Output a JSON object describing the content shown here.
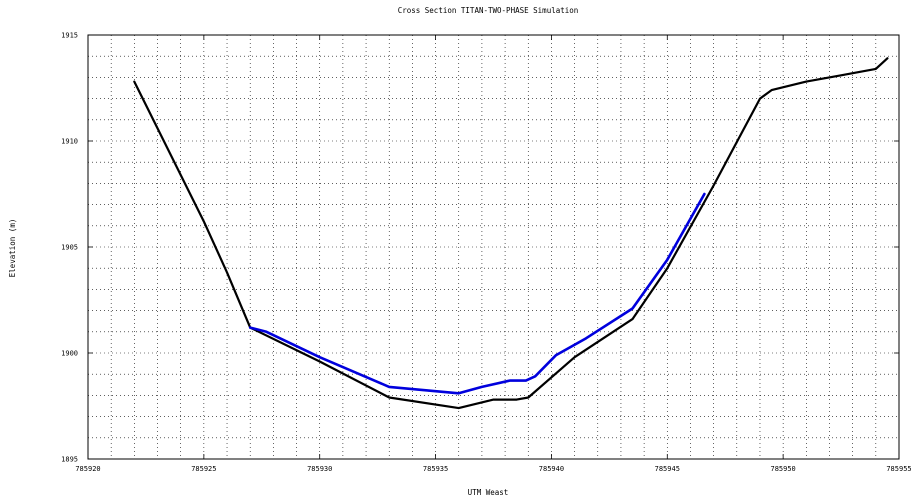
{
  "chart_data": {
    "type": "line",
    "title": "Cross Section TITAN-TWO-PHASE Simulation",
    "xlabel": "UTM Weast",
    "ylabel": "Elevation (m)",
    "xlim": [
      785920,
      785955
    ],
    "ylim": [
      1895,
      1915
    ],
    "xticks": [
      785920,
      785925,
      785930,
      785935,
      785940,
      785945,
      785950,
      785955
    ],
    "yticks": [
      1895,
      1900,
      1905,
      1910,
      1915
    ],
    "grid": true,
    "grid_minor": true,
    "series": [
      {
        "color": "#000000",
        "x": [
          785922.0,
          785925.0,
          785926.0,
          785927.0,
          785930.0,
          785933.0,
          785936.0,
          785937.5,
          785938.5,
          785939.0,
          785941.0,
          785943.5,
          785945.0,
          785947.0,
          785949.0,
          785949.5,
          785951.0,
          785952.5,
          785954.0,
          785954.5
        ],
        "y": [
          1912.8,
          1906.2,
          1903.8,
          1901.2,
          1899.6,
          1897.9,
          1897.4,
          1897.8,
          1897.8,
          1897.9,
          1899.8,
          1901.6,
          1904.0,
          1907.9,
          1912.0,
          1912.4,
          1912.8,
          1913.1,
          1913.4,
          1913.9
        ]
      },
      {
        "color": "#0000dd",
        "x": [
          785927.0,
          785927.7,
          785930.0,
          785933.0,
          785936.0,
          785937.0,
          785938.2,
          785938.9,
          785939.3,
          785940.2,
          785941.5,
          785943.5,
          785945.0,
          785946.6
        ],
        "y": [
          1901.2,
          1901.0,
          1899.8,
          1898.4,
          1898.1,
          1898.4,
          1898.7,
          1898.7,
          1898.9,
          1899.9,
          1900.7,
          1902.1,
          1904.4,
          1907.5
        ]
      }
    ]
  }
}
